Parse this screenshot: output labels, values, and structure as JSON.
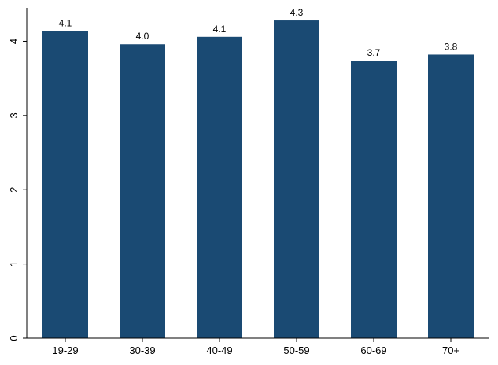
{
  "chart_data": {
    "type": "bar",
    "categories": [
      "19-29",
      "30-39",
      "40-49",
      "50-59",
      "60-69",
      "70+"
    ],
    "values": [
      4.14,
      3.96,
      4.06,
      4.28,
      3.74,
      3.82
    ],
    "data_labels": [
      "4.1",
      "4.0",
      "4.1",
      "4.3",
      "3.7",
      "3.8"
    ],
    "title": "",
    "xlabel": "",
    "ylabel": "",
    "ylim": [
      0,
      4.45
    ],
    "yticks": [
      0,
      1,
      2,
      3,
      4
    ],
    "ytick_labels": [
      "0",
      "1",
      "2",
      "3",
      "4"
    ],
    "grid": false,
    "bar_color": "#1a4a73"
  }
}
